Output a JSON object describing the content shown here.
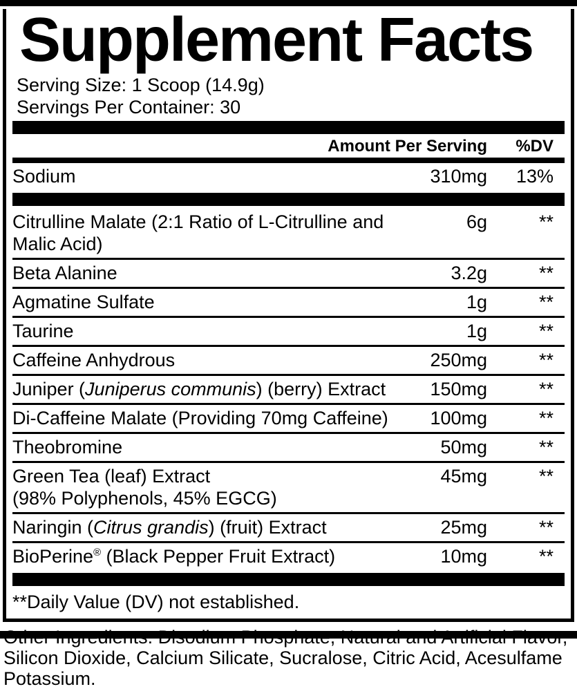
{
  "title": "Supplement Facts",
  "serving": {
    "size": "Serving Size: 1 Scoop (14.9g)",
    "per_container": "Servings Per Container: 30"
  },
  "columns": {
    "amount": "Amount Per Serving",
    "dv": "%DV"
  },
  "sodium": {
    "name": "Sodium",
    "amount": "310mg",
    "dv": "13%"
  },
  "ingredients": [
    {
      "lines": [
        [
          {
            "t": "Citrulline Malate (2:1 Ratio of L-Citrulline and Malic Acid)"
          }
        ]
      ],
      "amount": "6g",
      "dv": "**"
    },
    {
      "lines": [
        [
          {
            "t": "Beta Alanine"
          }
        ]
      ],
      "amount": "3.2g",
      "dv": "**"
    },
    {
      "lines": [
        [
          {
            "t": "Agmatine Sulfate"
          }
        ]
      ],
      "amount": "1g",
      "dv": "**"
    },
    {
      "lines": [
        [
          {
            "t": "Taurine"
          }
        ]
      ],
      "amount": "1g",
      "dv": "**"
    },
    {
      "lines": [
        [
          {
            "t": "Caffeine Anhydrous"
          }
        ]
      ],
      "amount": "250mg",
      "dv": "**"
    },
    {
      "lines": [
        [
          {
            "t": "Juniper ("
          },
          {
            "t": "Juniperus communis",
            "i": true
          },
          {
            "t": ") (berry) Extract"
          }
        ]
      ],
      "amount": "150mg",
      "dv": "**"
    },
    {
      "lines": [
        [
          {
            "t": "Di-Caffeine Malate (Providing 70mg Caffeine)"
          }
        ]
      ],
      "amount": "100mg",
      "dv": "**"
    },
    {
      "lines": [
        [
          {
            "t": "Theobromine"
          }
        ]
      ],
      "amount": "50mg",
      "dv": "**"
    },
    {
      "lines": [
        [
          {
            "t": "Green Tea (leaf) Extract"
          }
        ],
        [
          {
            "t": "(98% Polyphenols, 45% EGCG)"
          }
        ]
      ],
      "amount": "45mg",
      "dv": "**"
    },
    {
      "lines": [
        [
          {
            "t": "Naringin ("
          },
          {
            "t": "Citrus grandis",
            "i": true
          },
          {
            "t": ") (fruit) Extract"
          }
        ]
      ],
      "amount": "25mg",
      "dv": "**"
    },
    {
      "lines": [
        [
          {
            "t": "BioPerine"
          },
          {
            "t": "®",
            "sup": true
          },
          {
            "t": " (Black Pepper Fruit Extract)"
          }
        ]
      ],
      "amount": "10mg",
      "dv": "**"
    }
  ],
  "footnote": "**Daily Value (DV) not established.",
  "other_ingredients": "Other Ingredients: Disodium Phosphate, Natural and Artificial Flavor, Silicon Dioxide, Calcium Silicate, Sucralose, Citric Acid, Acesulfame Potassium.",
  "colors": {
    "ink": "#000000",
    "paper": "#ffffff"
  }
}
